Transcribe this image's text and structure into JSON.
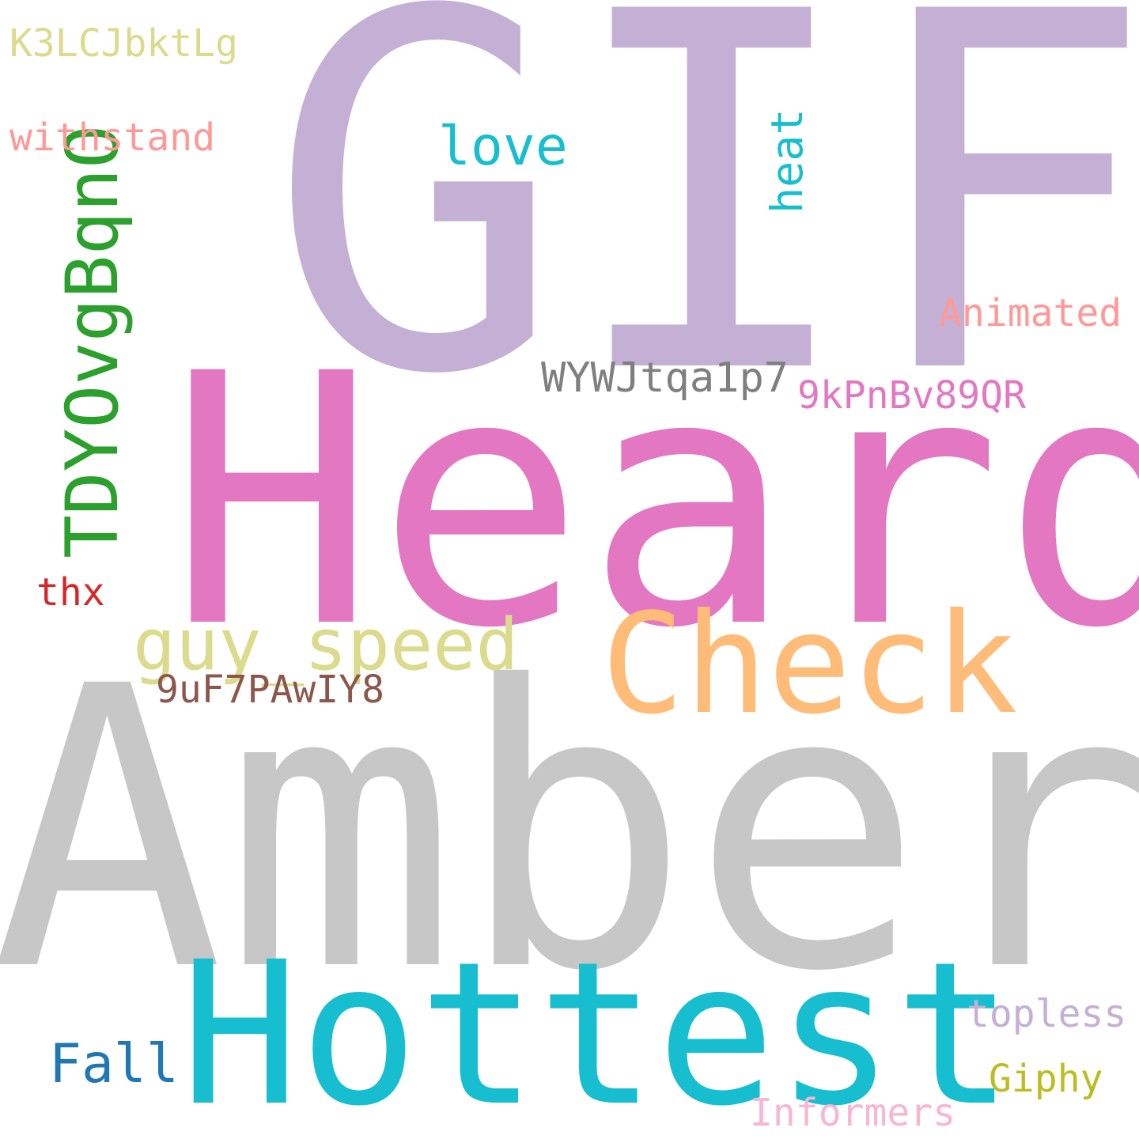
{
  "words": [
    {
      "text": "GIF",
      "color": "#c5b0d5",
      "vertical": false
    },
    {
      "text": "Heard",
      "color": "#e377c2",
      "vertical": false
    },
    {
      "text": "Amber",
      "color": "#c7c7c7",
      "vertical": false
    },
    {
      "text": "Hottest",
      "color": "#17becf",
      "vertical": false
    },
    {
      "text": "Check",
      "color": "#ffbb78",
      "vertical": false
    },
    {
      "text": "guy_speed",
      "color": "#dbdb8d",
      "vertical": false
    },
    {
      "text": "TDYOvgBqnO",
      "color": "#2ca02c",
      "vertical": true
    },
    {
      "text": "love",
      "color": "#17becf",
      "vertical": false
    },
    {
      "text": "heat",
      "color": "#17becf",
      "vertical": true
    },
    {
      "text": "WYWJtqa1p7",
      "color": "#7f7f7f",
      "vertical": false
    },
    {
      "text": "9kPnBv89QR",
      "color": "#e377c2",
      "vertical": false
    },
    {
      "text": "Animated",
      "color": "#ff9896",
      "vertical": false
    },
    {
      "text": "9uF7PAwIY8",
      "color": "#8c564b",
      "vertical": false
    },
    {
      "text": "withstand",
      "color": "#ff9896",
      "vertical": false
    },
    {
      "text": "K3LCJbktLg",
      "color": "#dbdb8d",
      "vertical": false
    },
    {
      "text": "thx",
      "color": "#d62728",
      "vertical": false
    },
    {
      "text": "Fall",
      "color": "#1f77b4",
      "vertical": false
    },
    {
      "text": "topless",
      "color": "#c5b0d5",
      "vertical": false
    },
    {
      "text": "Giphy",
      "color": "#bcbd22",
      "vertical": false
    },
    {
      "text": "Informers",
      "color": "#f7b6d2",
      "vertical": false
    }
  ]
}
